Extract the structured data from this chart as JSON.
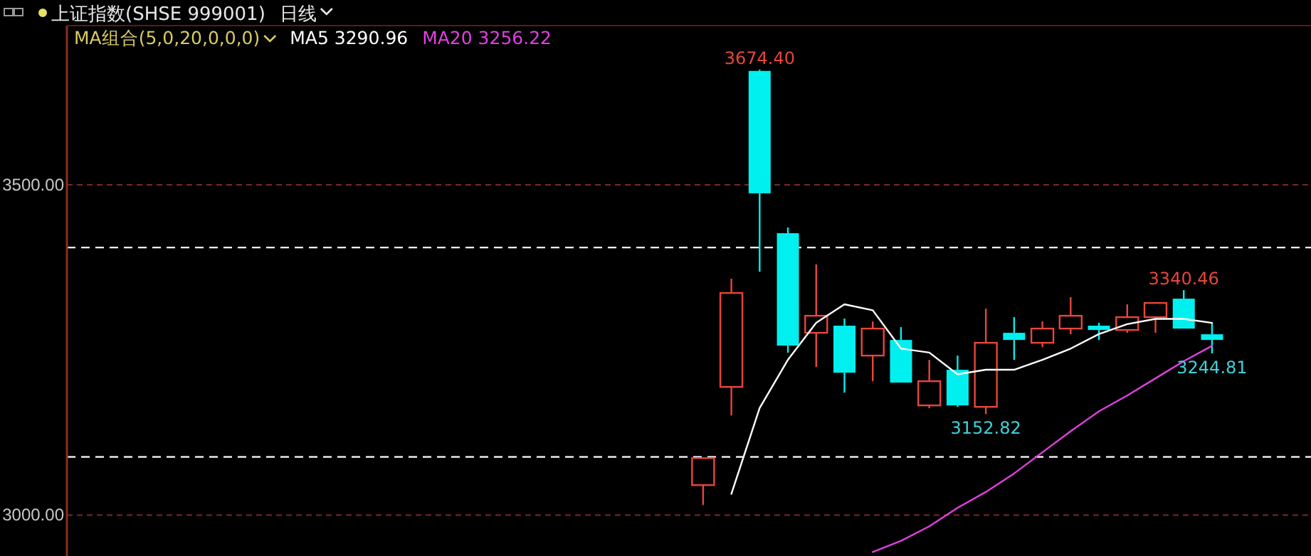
{
  "chart_data": {
    "type": "candlestick",
    "title": "上证指数(SHSE 999001)",
    "subtitle": "日线",
    "legend_title": "MA组合(5,0,20,0,0,0)",
    "legend": "top left",
    "tick_labels": "y",
    "grid": "y",
    "categories": [
      null,
      null,
      null,
      null,
      null,
      null,
      null,
      null,
      null,
      null,
      null,
      null,
      null,
      null,
      null,
      null,
      null,
      null,
      null,
      null,
      null,
      null,
      null,
      null,
      null,
      null,
      null,
      null,
      null,
      null,
      null,
      null,
      null,
      null,
      null,
      null,
      null,
      null,
      null,
      null,
      null,
      null,
      null,
      null
    ],
    "ylim": [
      2938,
      3741
    ],
    "yticks": [
      {
        "value": 3000,
        "label": "3000.00"
      },
      {
        "value": 3500,
        "label": "3500.00"
      }
    ],
    "ohlc": [
      null,
      null,
      null,
      null,
      null,
      null,
      null,
      null,
      null,
      null,
      null,
      null,
      null,
      null,
      null,
      null,
      null,
      null,
      null,
      null,
      null,
      null,
      [
        3045.3,
        3086.2,
        3015.1,
        3086.2
      ],
      [
        3194.0,
        3357.8,
        3150.9,
        3336.2
      ],
      [
        3672.4,
        3674.4,
        3368.5,
        3487.1
      ],
      [
        3426.7,
        3435.4,
        3245.7,
        3256.5
      ],
      [
        3275.9,
        3379.3,
        3224.2,
        3301.7
      ],
      [
        3286.7,
        3297.4,
        3185.4,
        3215.5
      ],
      [
        3241.4,
        3293.1,
        3202.6,
        3282.3
      ],
      [
        3265.1,
        3284.5,
        3200.5,
        3200.5
      ],
      [
        3166.0,
        3234.9,
        3161.7,
        3202.6
      ],
      [
        3219.9,
        3241.4,
        3163.8,
        3166.0
      ],
      [
        3163.8,
        3312.5,
        3152.82,
        3260.8
      ],
      [
        3275.9,
        3299.6,
        3234.9,
        3265.1
      ],
      [
        3260.8,
        3293.1,
        3254.3,
        3282.3
      ],
      [
        3282.3,
        3329.8,
        3273.7,
        3301.7
      ],
      [
        3286.7,
        3290.9,
        3265.1,
        3280.2
      ],
      [
        3280.2,
        3319.0,
        3275.9,
        3299.6
      ],
      [
        3299.6,
        3321.1,
        3275.9,
        3321.1
      ],
      [
        3327.6,
        3340.46,
        3282.3,
        3282.3
      ],
      [
        3273.7,
        3290.9,
        3244.81,
        3265.1
      ],
      null,
      null,
      null
    ],
    "colors": [
      null,
      null,
      null,
      null,
      null,
      null,
      null,
      null,
      null,
      null,
      null,
      null,
      null,
      null,
      null,
      null,
      null,
      null,
      null,
      null,
      null,
      null,
      "#e8463c",
      "#e8463c",
      "#00f0f0",
      "#00f0f0",
      "#e8463c",
      "#00f0f0",
      "#e8463c",
      "#00f0f0",
      "#e8463c",
      "#00f0f0",
      "#e8463c",
      "#00f0f0",
      "#e8463c",
      "#e8463c",
      "#00f0f0",
      "#e8463c",
      "#e8463c",
      "#00f0f0",
      "#00f0f0",
      null,
      null,
      null
    ],
    "series": [
      {
        "type": "line",
        "name": "MA5 3290.96",
        "color": "#ffffff",
        "values": [
          null,
          null,
          null,
          null,
          null,
          null,
          null,
          null,
          null,
          null,
          null,
          null,
          null,
          null,
          null,
          null,
          null,
          null,
          null,
          null,
          null,
          null,
          null,
          3032,
          3162,
          3235,
          3291,
          3319,
          3310,
          3252,
          3246,
          3213,
          3220,
          3220,
          3235,
          3252,
          3274,
          3289,
          3297,
          3297,
          3290.96,
          null,
          null,
          null
        ]
      },
      {
        "type": "line",
        "name": "MA20 3256.22",
        "color": "#e040e0",
        "values": [
          null,
          null,
          null,
          null,
          null,
          null,
          null,
          null,
          null,
          null,
          null,
          null,
          null,
          null,
          null,
          null,
          null,
          null,
          null,
          null,
          null,
          null,
          null,
          null,
          null,
          null,
          null,
          null,
          2944,
          2961,
          2983,
          3011,
          3035,
          3063,
          3095,
          3127,
          3157,
          3181,
          3207,
          3233,
          3256.22,
          null,
          null,
          null
        ]
      }
    ],
    "ref_lines": [
      {
        "axis": "y",
        "value": 3405,
        "color": "#ffffff",
        "line_style": "dashed"
      },
      {
        "axis": "y",
        "value": 3088,
        "color": "#ffffff",
        "line_style": "dashed"
      }
    ],
    "annotations": [
      {
        "text": "3674.40",
        "y": 3674.4
      },
      {
        "text": "3340.46",
        "y": 3340.46
      },
      {
        "text": "3152.82",
        "y": 3152.82
      },
      {
        "text": "3244.81",
        "y": 3244.81
      }
    ]
  }
}
